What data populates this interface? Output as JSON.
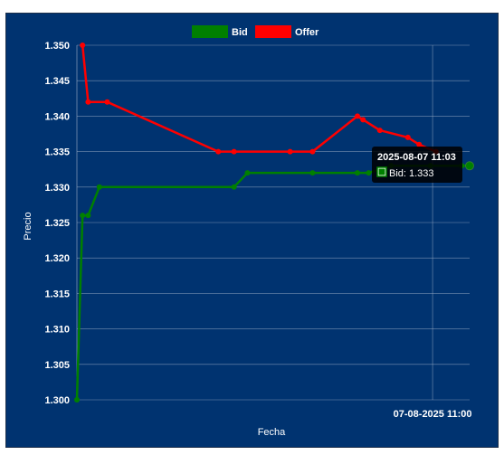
{
  "chart_data": {
    "type": "line",
    "x_ticks": [
      "07-08-2025 11:00"
    ],
    "ylabel": "Precio",
    "xlabel": "Fecha",
    "ylim": [
      1.3,
      1.35
    ],
    "y_ticks": [
      "1.350",
      "1.345",
      "1.340",
      "1.335",
      "1.330",
      "1.325",
      "1.320",
      "1.315",
      "1.310",
      "1.305",
      "1.300"
    ],
    "grid": true,
    "legend": "top-center",
    "series": [
      {
        "name": "Bid",
        "color": "#008000",
        "x_minutes": [
          0,
          0.5,
          1.0,
          2.0,
          14.0,
          15.2,
          21.0,
          25.0,
          26.0,
          28.0,
          31.5,
          34.3,
          35.0
        ],
        "values": [
          1.3,
          1.326,
          1.326,
          1.33,
          1.33,
          1.332,
          1.332,
          1.332,
          1.332,
          1.333,
          1.333,
          1.333,
          1.333
        ]
      },
      {
        "name": "Offer",
        "color": "#ff0000",
        "x_minutes": [
          0.5,
          1.0,
          2.7,
          12.6,
          14.0,
          19.0,
          21.0,
          25.0,
          25.5,
          27.0,
          29.5,
          30.5,
          32.0
        ],
        "values": [
          1.35,
          1.342,
          1.342,
          1.335,
          1.335,
          1.335,
          1.335,
          1.34,
          1.3395,
          1.338,
          1.337,
          1.336,
          1.335
        ]
      }
    ]
  },
  "tooltip": {
    "title": "2025-08-07 11:03",
    "body": "Bid: 1.333"
  }
}
